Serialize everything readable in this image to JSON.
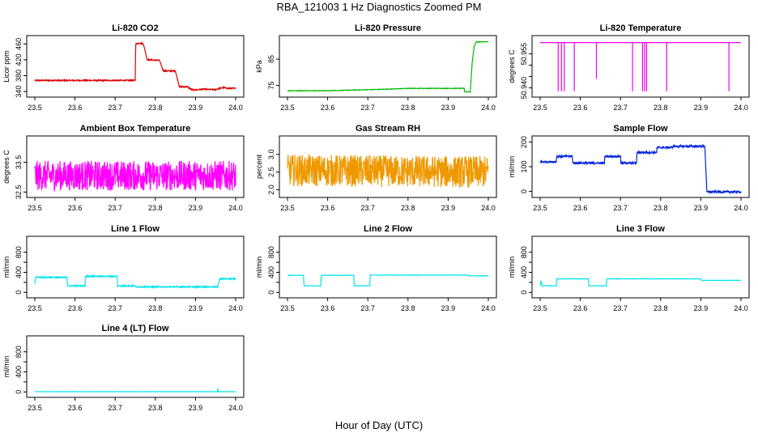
{
  "title": "RBA_121003  1 Hz Diagnostics Zoomed PM",
  "xlabel": "Hour of Day (UTC)",
  "chart_data": [
    {
      "type": "line",
      "title": "Li-820 CO2",
      "ylabel": "Licor ppm",
      "color": "#dd0000",
      "xlim": [
        23.5,
        24.0
      ],
      "xticks": [
        23.5,
        23.6,
        23.7,
        23.8,
        23.9,
        24.0
      ],
      "xtick_labels": [
        "23.5",
        "23.6",
        "23.7",
        "23.8",
        "23.9",
        "24.0"
      ],
      "ylim": [
        332,
        475
      ],
      "yticks": [
        340,
        380,
        420,
        460
      ],
      "ytick_labels": [
        "340",
        "380",
        "420",
        "460"
      ],
      "noise": 1.5,
      "series": [
        {
          "x": [
            23.5,
            23.75,
            23.751,
            23.76,
            23.77,
            23.78,
            23.79,
            23.8,
            23.81,
            23.82,
            23.83,
            23.84,
            23.85,
            23.86,
            23.87,
            23.88,
            23.89,
            23.9,
            23.91,
            23.92,
            23.93,
            23.94,
            23.95,
            23.96,
            23.97,
            23.98,
            23.99,
            24.0
          ],
          "y": [
            368,
            368,
            460,
            462,
            461,
            420,
            420,
            419,
            419,
            392,
            392,
            392,
            392,
            352,
            352,
            352,
            345,
            344,
            345,
            346,
            345,
            345,
            345,
            348,
            350,
            348,
            348,
            348
          ]
        }
      ]
    },
    {
      "type": "line",
      "title": "Li-820 Pressure",
      "ylabel": "kPa",
      "color": "#00bb00",
      "xlim": [
        23.5,
        24.0
      ],
      "xticks": [
        23.5,
        23.6,
        23.7,
        23.8,
        23.9,
        24.0
      ],
      "xtick_labels": [
        "23.5",
        "23.6",
        "23.7",
        "23.8",
        "23.9",
        "24.0"
      ],
      "ylim": [
        71.5,
        93
      ],
      "yticks": [
        75,
        85
      ],
      "ytick_labels": [
        "75",
        "85"
      ],
      "noise": 0.1,
      "series": [
        {
          "x": [
            23.5,
            23.6,
            23.75,
            23.8,
            23.9,
            23.94,
            23.941,
            23.955,
            23.96,
            23.965,
            23.97,
            24.0
          ],
          "y": [
            73.0,
            73.0,
            73.6,
            73.9,
            73.9,
            73.9,
            72.6,
            72.6,
            84.0,
            90.0,
            91.5,
            91.6
          ]
        }
      ]
    },
    {
      "type": "line",
      "title": "Li-820 Temperature",
      "ylabel": "degrees C",
      "color": "#ee00ee",
      "xlim": [
        23.5,
        24.0
      ],
      "xticks": [
        23.5,
        23.6,
        23.7,
        23.8,
        23.9,
        24.0
      ],
      "xtick_labels": [
        "23.5",
        "23.6",
        "23.7",
        "23.8",
        "23.9",
        "24.0"
      ],
      "ylim": [
        50.937,
        50.962
      ],
      "yticks": [
        50.94,
        50.945,
        50.95,
        50.955
      ],
      "ytick_labels": [
        "50.940",
        "",
        "",
        "50.955"
      ],
      "noise": 0,
      "series": [
        {
          "x": [
            23.5,
            23.545,
            23.545,
            23.545,
            23.553,
            23.553,
            23.553,
            23.56,
            23.56,
            23.56,
            23.585,
            23.585,
            23.585,
            23.64,
            23.64,
            23.64,
            23.73,
            23.73,
            23.73,
            23.755,
            23.755,
            23.755,
            23.76,
            23.76,
            23.76,
            23.765,
            23.765,
            23.765,
            23.815,
            23.815,
            23.815,
            23.97,
            23.97,
            23.97,
            24.0
          ],
          "y": [
            50.96,
            50.96,
            50.9385,
            50.96,
            50.96,
            50.9385,
            50.96,
            50.96,
            50.9385,
            50.96,
            50.96,
            50.9385,
            50.96,
            50.96,
            50.944,
            50.96,
            50.96,
            50.9385,
            50.96,
            50.96,
            50.9385,
            50.96,
            50.96,
            50.9385,
            50.96,
            50.96,
            50.9385,
            50.96,
            50.96,
            50.9385,
            50.96,
            50.96,
            50.9385,
            50.96,
            50.96
          ]
        }
      ]
    },
    {
      "type": "line",
      "title": "Ambient Box Temperature",
      "ylabel": "degrees C",
      "color": "#ff00ff",
      "xlim": [
        23.5,
        24.0
      ],
      "xticks": [
        23.5,
        23.6,
        23.7,
        23.8,
        23.9,
        24.0
      ],
      "xtick_labels": [
        "23.5",
        "23.6",
        "23.7",
        "23.8",
        "23.9",
        "24.0"
      ],
      "ylim": [
        32.4,
        34.3
      ],
      "yticks": [
        32.5,
        33.5
      ],
      "ytick_labels": [
        "32.5",
        "33.5"
      ],
      "noise": 0.5,
      "series": [
        {
          "x": [
            23.5,
            24.0
          ],
          "y": [
            33.05,
            33.05
          ]
        }
      ]
    },
    {
      "type": "line",
      "title": "Gas Stream RH",
      "ylabel": "percent",
      "color": "#ee9900",
      "xlim": [
        23.5,
        24.0
      ],
      "xticks": [
        23.5,
        23.6,
        23.7,
        23.8,
        23.9,
        24.0
      ],
      "xtick_labels": [
        "23.5",
        "23.6",
        "23.7",
        "23.8",
        "23.9",
        "24.0"
      ],
      "ylim": [
        1.85,
        3.45
      ],
      "yticks": [
        2.0,
        2.5,
        3.0
      ],
      "ytick_labels": [
        "2.0",
        "2.5",
        "3.0"
      ],
      "noise": 0.45,
      "series": [
        {
          "x": [
            23.5,
            24.0
          ],
          "y": [
            2.55,
            2.5
          ]
        }
      ]
    },
    {
      "type": "line",
      "title": "Sample Flow",
      "ylabel": "ml/min",
      "color": "#0022dd",
      "xlim": [
        23.5,
        24.0
      ],
      "xticks": [
        23.5,
        23.6,
        23.7,
        23.8,
        23.9,
        24.0
      ],
      "xtick_labels": [
        "23.5",
        "23.6",
        "23.7",
        "23.8",
        "23.9",
        "24.0"
      ],
      "ylim": [
        -15,
        215
      ],
      "yticks": [
        0,
        100,
        200
      ],
      "ytick_labels": [
        "0",
        "100",
        "200"
      ],
      "noise": 4,
      "series": [
        {
          "x": [
            23.5,
            23.54,
            23.541,
            23.58,
            23.581,
            23.66,
            23.661,
            23.7,
            23.701,
            23.74,
            23.741,
            23.79,
            23.791,
            23.83,
            23.831,
            23.91,
            23.915,
            24.0
          ],
          "y": [
            120,
            120,
            142,
            142,
            115,
            115,
            142,
            142,
            115,
            115,
            158,
            158,
            178,
            178,
            183,
            183,
            -2,
            -2
          ]
        }
      ]
    },
    {
      "type": "line",
      "title": "Line 1 Flow",
      "ylabel": "ml/min",
      "color": "#00e5ee",
      "xlim": [
        23.5,
        24.0
      ],
      "xticks": [
        23.5,
        23.6,
        23.7,
        23.8,
        23.9,
        24.0
      ],
      "xtick_labels": [
        "23.5",
        "23.6",
        "23.7",
        "23.8",
        "23.9",
        "24.0"
      ],
      "ylim": [
        -60,
        1070
      ],
      "yticks": [
        0,
        200,
        400,
        600,
        800
      ],
      "ytick_labels": [
        "0",
        "",
        "400",
        "",
        "800"
      ],
      "noise": 12,
      "series": [
        {
          "x": [
            23.5,
            23.502,
            23.58,
            23.581,
            23.625,
            23.626,
            23.705,
            23.706,
            23.75,
            23.751,
            23.955,
            23.96,
            24.0
          ],
          "y": [
            180,
            300,
            300,
            130,
            130,
            320,
            320,
            130,
            130,
            110,
            110,
            270,
            270
          ]
        }
      ]
    },
    {
      "type": "line",
      "title": "Line 2 Flow",
      "ylabel": "ml/min",
      "color": "#00e5ee",
      "xlim": [
        23.5,
        24.0
      ],
      "xticks": [
        23.5,
        23.6,
        23.7,
        23.8,
        23.9,
        24.0
      ],
      "xtick_labels": [
        "23.5",
        "23.6",
        "23.7",
        "23.8",
        "23.9",
        "24.0"
      ],
      "ylim": [
        -60,
        1070
      ],
      "yticks": [
        0,
        200,
        400,
        600,
        800
      ],
      "ytick_labels": [
        "0",
        "",
        "400",
        "",
        "800"
      ],
      "noise": 3,
      "series": [
        {
          "x": [
            23.5,
            23.54,
            23.541,
            23.583,
            23.584,
            23.665,
            23.666,
            23.705,
            23.706,
            23.95,
            23.951,
            24.0
          ],
          "y": [
            340,
            340,
            130,
            130,
            340,
            340,
            130,
            130,
            345,
            345,
            330,
            330
          ]
        }
      ]
    },
    {
      "type": "line",
      "title": "Line 3 Flow",
      "ylabel": "ml/min",
      "color": "#00e5ee",
      "xlim": [
        23.5,
        24.0
      ],
      "xticks": [
        23.5,
        23.6,
        23.7,
        23.8,
        23.9,
        24.0
      ],
      "xtick_labels": [
        "23.5",
        "23.6",
        "23.7",
        "23.8",
        "23.9",
        "24.0"
      ],
      "ylim": [
        -60,
        1070
      ],
      "yticks": [
        0,
        200,
        400,
        600,
        800
      ],
      "ytick_labels": [
        "0",
        "",
        "400",
        "",
        "800"
      ],
      "noise": 3,
      "series": [
        {
          "x": [
            23.5,
            23.502,
            23.505,
            23.54,
            23.541,
            23.62,
            23.621,
            23.665,
            23.666,
            23.9,
            23.901,
            24.0
          ],
          "y": [
            130,
            230,
            130,
            130,
            270,
            270,
            130,
            130,
            270,
            270,
            240,
            240
          ]
        }
      ]
    },
    {
      "type": "line",
      "title": "Line 4 (LT) Flow",
      "ylabel": "ml/min",
      "color": "#00e5ee",
      "xlim": [
        23.5,
        24.0
      ],
      "xticks": [
        23.5,
        23.6,
        23.7,
        23.8,
        23.9,
        24.0
      ],
      "xtick_labels": [
        "23.5",
        "23.6",
        "23.7",
        "23.8",
        "23.9",
        "24.0"
      ],
      "ylim": [
        -60,
        1070
      ],
      "yticks": [
        0,
        200,
        400,
        600,
        800
      ],
      "ytick_labels": [
        "0",
        "",
        "400",
        "",
        "800"
      ],
      "noise": 2,
      "series": [
        {
          "x": [
            23.5,
            23.955,
            23.956,
            23.957,
            24.0
          ],
          "y": [
            5,
            5,
            80,
            5,
            5
          ]
        }
      ]
    }
  ]
}
